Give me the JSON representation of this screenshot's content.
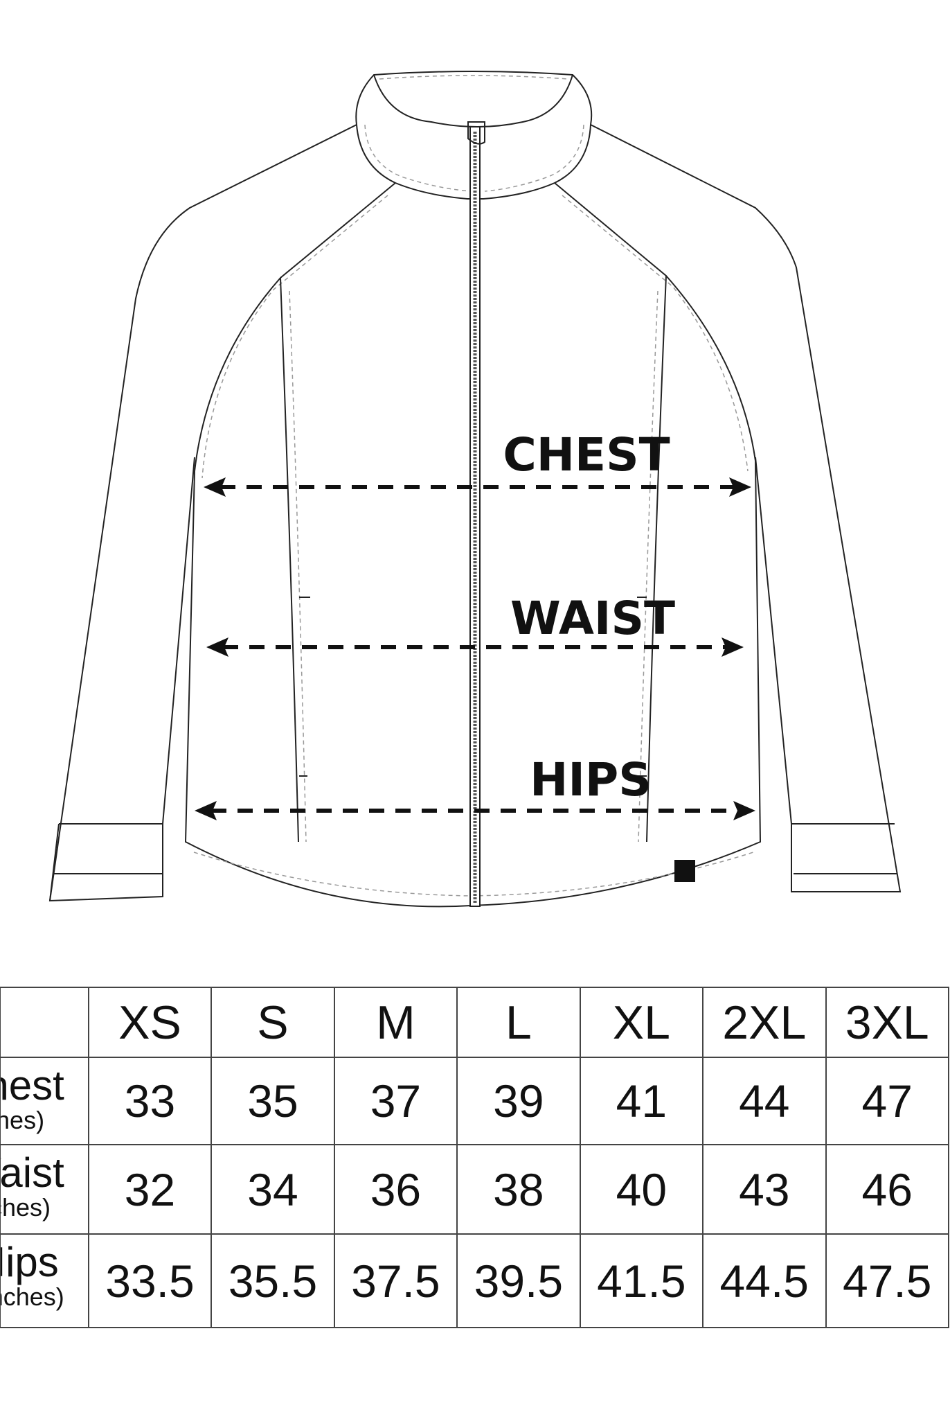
{
  "diagram": {
    "labels": {
      "chest": "CHEST",
      "waist": "WAIST",
      "hips": "HIPS"
    }
  },
  "table": {
    "sizes": [
      "XS",
      "S",
      "M",
      "L",
      "XL",
      "2XL",
      "3XL"
    ],
    "rows": [
      {
        "label": "Chest",
        "unit": "(inches)",
        "values": [
          "33",
          "35",
          "37",
          "39",
          "41",
          "44",
          "47"
        ]
      },
      {
        "label": "Waist",
        "unit": "(inches)",
        "values": [
          "32",
          "34",
          "36",
          "38",
          "40",
          "43",
          "46"
        ]
      },
      {
        "label": "Hips",
        "unit": "(inches)",
        "values": [
          "33.5",
          "35.5",
          "37.5",
          "39.5",
          "41.5",
          "44.5",
          "47.5"
        ]
      }
    ]
  }
}
